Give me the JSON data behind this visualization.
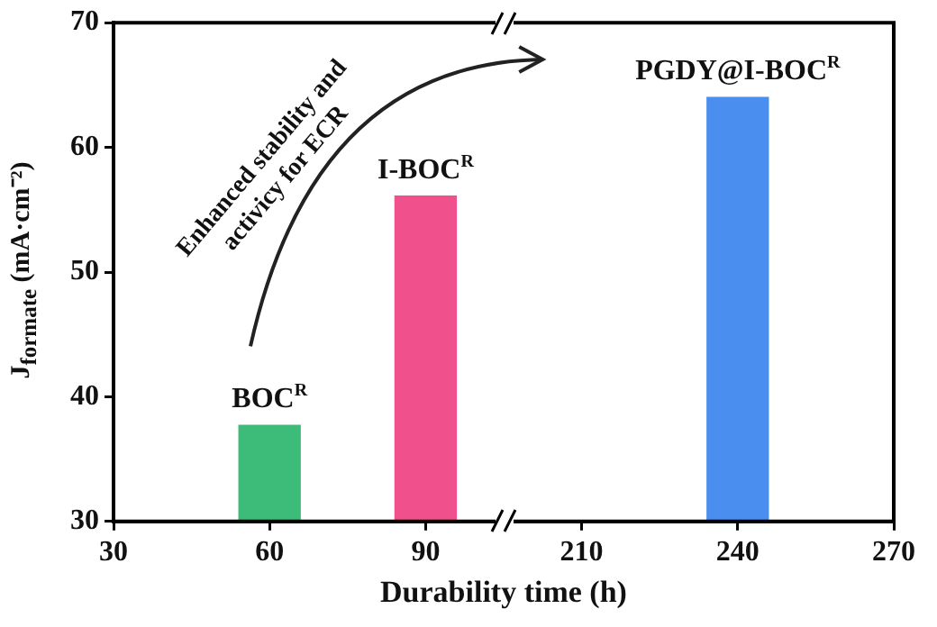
{
  "chart_data": {
    "type": "bar",
    "xlabel": "Durability time (h)",
    "ylabel": "J$_{formate}$ (mA·cm⁻²)",
    "categories": [
      "30",
      "60",
      "90",
      "210",
      "240",
      "270"
    ],
    "values": [
      null,
      37.7,
      56.1,
      null,
      64.0,
      null
    ],
    "colors": [
      "#3dbb78",
      "#3dbb78",
      "#f0508c",
      "#4a8ef0",
      "#4a8ef0",
      "#4a8ef0"
    ],
    "ylim": [
      30,
      70
    ],
    "yticks": [
      30,
      40,
      50,
      60,
      70
    ],
    "annotations": [
      {
        "text": "BOC$^{R}$",
        "x": "60",
        "y": 37.7
      },
      {
        "text": "I-BOC$^{R}$",
        "x": "90",
        "y": 56.1
      },
      {
        "text": "PGDY@I-BOC$^{R}$",
        "x": "240",
        "y": 64.0
      },
      "Enhanced stability and activicy for ECR"
    ]
  }
}
